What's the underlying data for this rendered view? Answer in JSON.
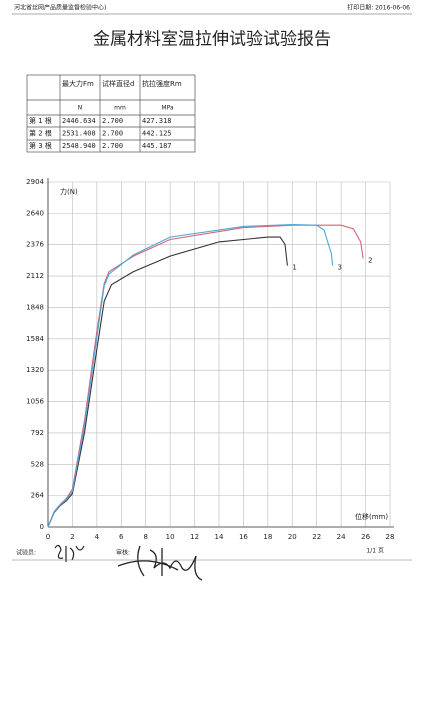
{
  "header": {
    "org": "河北省丝网产品质量监督检验中心)",
    "print_date": "打印日期: 2016-06-06"
  },
  "title": "金属材料室温拉伸试验试验报告",
  "table": {
    "columns": [
      "最大力Fm",
      "试样直径d",
      "抗拉强度Rm"
    ],
    "units": [
      "N",
      "mm",
      "MPa"
    ],
    "rows": [
      {
        "label": "第 1 根",
        "cells": [
          "2446.634",
          "2.700",
          "427.318"
        ]
      },
      {
        "label": "第 2 根",
        "cells": [
          "2531.408",
          "2.700",
          "442.125"
        ]
      },
      {
        "label": "第 3 根",
        "cells": [
          "2548.940",
          "2.700",
          "445.187"
        ]
      }
    ]
  },
  "chart_data": {
    "type": "line",
    "y_label": "力(N)",
    "x_label": "位移(mm)",
    "xlim": [
      0,
      28
    ],
    "xticks": [
      0,
      2,
      4,
      6,
      8,
      10,
      12,
      14,
      16,
      18,
      20,
      22,
      24,
      26,
      28
    ],
    "ylim": [
      0,
      2904
    ],
    "yticks": [
      0,
      264,
      528,
      792,
      1056,
      1320,
      1584,
      1848,
      2112,
      2376,
      2640,
      2904
    ],
    "grid": true,
    "series": [
      {
        "name": "1",
        "color": "#333333",
        "x": [
          0,
          0.5,
          1,
          1.5,
          2,
          3,
          4,
          4.6,
          5.2,
          7,
          10,
          14,
          18,
          19,
          19.4,
          19.6
        ],
        "values": [
          0,
          120,
          180,
          220,
          280,
          800,
          1500,
          1900,
          2040,
          2150,
          2280,
          2400,
          2440,
          2440,
          2380,
          2200
        ]
      },
      {
        "name": "2",
        "color": "#d9607a",
        "x": [
          0,
          0.5,
          1,
          1.5,
          2,
          3,
          4,
          4.6,
          5,
          7,
          10,
          16,
          20,
          24,
          25,
          25.6,
          25.8
        ],
        "values": [
          0,
          130,
          190,
          240,
          320,
          900,
          1650,
          2050,
          2150,
          2280,
          2420,
          2520,
          2540,
          2540,
          2510,
          2400,
          2260
        ]
      },
      {
        "name": "3",
        "color": "#4aa8d8",
        "x": [
          0,
          0.5,
          1,
          1.5,
          2,
          3,
          4,
          4.6,
          5,
          7,
          10,
          16,
          20,
          22,
          22.6,
          23.2,
          23.3
        ],
        "values": [
          0,
          125,
          185,
          230,
          300,
          860,
          1600,
          2030,
          2130,
          2290,
          2440,
          2530,
          2545,
          2540,
          2500,
          2300,
          2200
        ]
      }
    ]
  },
  "footer": {
    "tester": "试验员:",
    "reviewer": "审核:",
    "page": "1/1 页"
  }
}
